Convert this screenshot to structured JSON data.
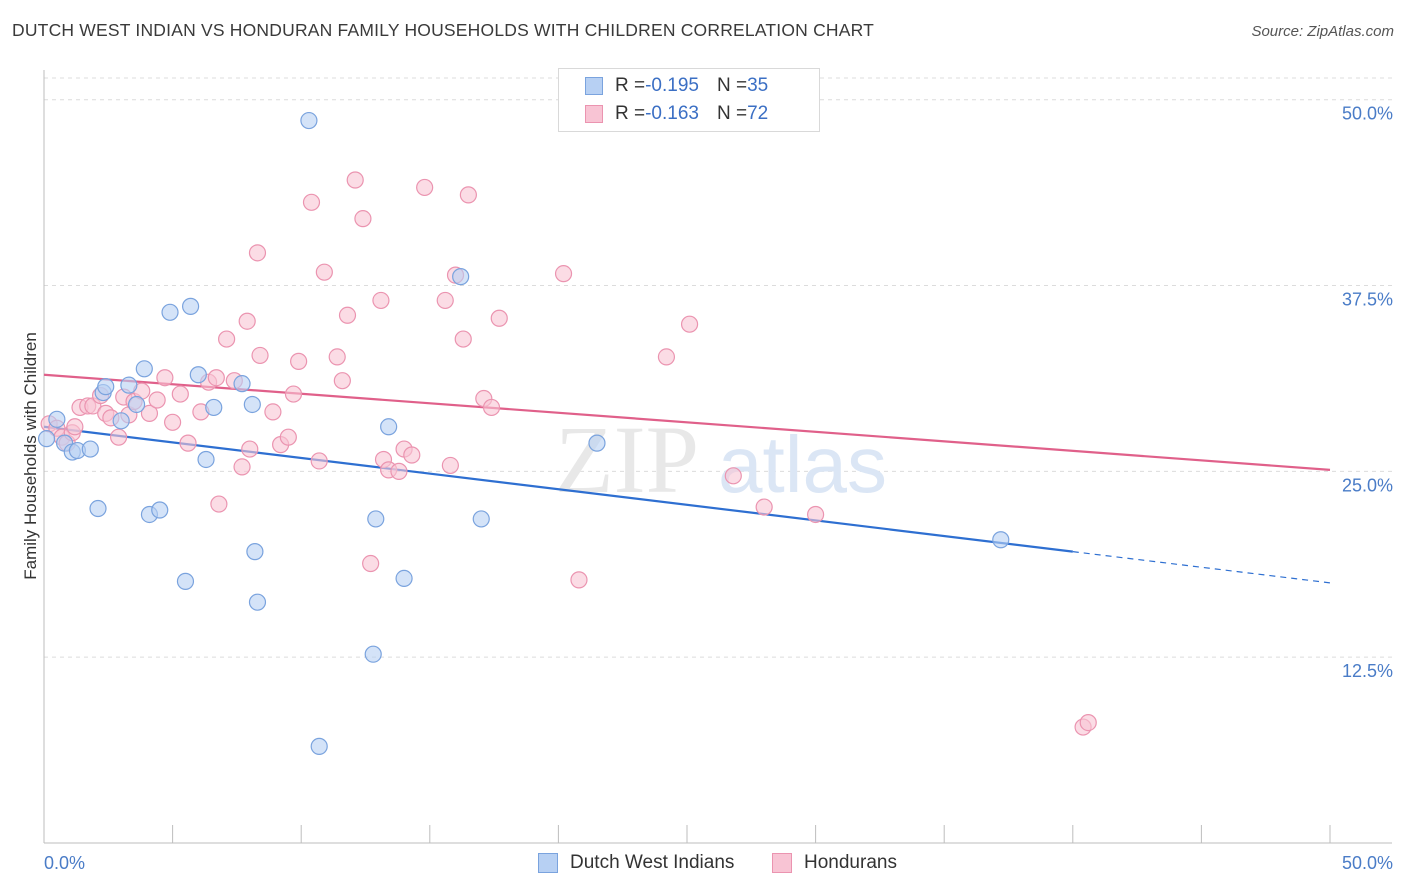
{
  "header": {
    "title": "DUTCH WEST INDIAN VS HONDURAN FAMILY HOUSEHOLDS WITH CHILDREN CORRELATION CHART",
    "source": "Source: ZipAtlas.com"
  },
  "watermark": {
    "zip": "ZIP",
    "atlas": "atlas"
  },
  "legend": {
    "rows": [
      {
        "r_label": "R = ",
        "r_value": "-0.195",
        "n_label": "N = ",
        "n_value": "35"
      },
      {
        "r_label": "R = ",
        "r_value": "-0.163",
        "n_label": "N = ",
        "n_value": "72"
      }
    ]
  },
  "bottom_legend": {
    "items": [
      "Dutch West Indians",
      "Hondurans"
    ]
  },
  "colors": {
    "blue_fill": "#b7d0f3",
    "blue_stroke": "#7aa3de",
    "blue_line": "#2e6fd1",
    "pink_fill": "#f8c4d4",
    "pink_stroke": "#eb94b0",
    "pink_line": "#e0608a",
    "tick_text": "#4a7cc7",
    "grid": "#dcdcdc"
  },
  "chart_data": {
    "type": "scatter",
    "title": "DUTCH WEST INDIAN VS HONDURAN FAMILY HOUSEHOLDS WITH CHILDREN CORRELATION CHART",
    "xlabel": "",
    "ylabel": "Family Households with Children",
    "xlim": [
      0,
      50
    ],
    "ylim": [
      0,
      52
    ],
    "x_tick_labels": [
      "0.0%",
      "50.0%"
    ],
    "y_ticks": [
      12.5,
      25.0,
      37.5,
      50.0
    ],
    "y_tick_labels": [
      "12.5%",
      "25.0%",
      "37.5%",
      "50.0%"
    ],
    "grid": true,
    "legend_position": "top-center",
    "series": [
      {
        "name": "Dutch West Indians",
        "R": -0.195,
        "N": 35,
        "trend": {
          "x0": 0,
          "y0": 28.0,
          "x1": 40,
          "y1": 19.6,
          "dashed_to_x": 50,
          "dashed_to_y": 17.5
        },
        "points": [
          [
            10.3,
            48.6
          ],
          [
            0.1,
            27.2
          ],
          [
            0.5,
            28.5
          ],
          [
            0.8,
            26.9
          ],
          [
            1.1,
            26.3
          ],
          [
            1.3,
            26.4
          ],
          [
            1.8,
            26.5
          ],
          [
            2.1,
            22.5
          ],
          [
            2.3,
            30.3
          ],
          [
            2.4,
            30.7
          ],
          [
            3.0,
            28.4
          ],
          [
            3.3,
            30.8
          ],
          [
            3.6,
            29.5
          ],
          [
            3.9,
            31.9
          ],
          [
            4.1,
            22.1
          ],
          [
            4.5,
            22.4
          ],
          [
            4.9,
            35.7
          ],
          [
            5.5,
            17.6
          ],
          [
            5.7,
            36.1
          ],
          [
            6.0,
            31.5
          ],
          [
            6.3,
            25.8
          ],
          [
            6.6,
            29.3
          ],
          [
            7.7,
            30.9
          ],
          [
            8.1,
            29.5
          ],
          [
            8.2,
            19.6
          ],
          [
            8.3,
            16.2
          ],
          [
            10.7,
            6.5
          ],
          [
            12.8,
            12.7
          ],
          [
            12.9,
            21.8
          ],
          [
            13.4,
            28.0
          ],
          [
            14.0,
            17.8
          ],
          [
            16.2,
            38.1
          ],
          [
            17.0,
            21.8
          ],
          [
            21.5,
            26.9
          ],
          [
            37.2,
            20.4
          ]
        ]
      },
      {
        "name": "Hondurans",
        "R": -0.163,
        "N": 72,
        "trend": {
          "x0": 0,
          "y0": 31.5,
          "x1": 50,
          "y1": 25.1
        },
        "points": [
          [
            0.2,
            28.2
          ],
          [
            0.5,
            27.9
          ],
          [
            0.7,
            27.3
          ],
          [
            0.9,
            26.9
          ],
          [
            1.1,
            27.6
          ],
          [
            1.2,
            28.0
          ],
          [
            1.4,
            29.3
          ],
          [
            1.7,
            29.4
          ],
          [
            1.9,
            29.4
          ],
          [
            2.2,
            30.1
          ],
          [
            2.4,
            28.9
          ],
          [
            2.6,
            28.6
          ],
          [
            2.9,
            27.3
          ],
          [
            3.1,
            30.0
          ],
          [
            3.3,
            28.8
          ],
          [
            3.5,
            29.7
          ],
          [
            3.8,
            30.4
          ],
          [
            4.1,
            28.9
          ],
          [
            4.4,
            29.8
          ],
          [
            4.7,
            31.3
          ],
          [
            5.0,
            28.3
          ],
          [
            5.3,
            30.2
          ],
          [
            5.6,
            26.9
          ],
          [
            6.1,
            29.0
          ],
          [
            6.4,
            31.0
          ],
          [
            6.7,
            31.3
          ],
          [
            6.8,
            22.8
          ],
          [
            7.1,
            33.9
          ],
          [
            7.4,
            31.1
          ],
          [
            7.7,
            25.3
          ],
          [
            7.9,
            35.1
          ],
          [
            8.0,
            26.5
          ],
          [
            8.3,
            39.7
          ],
          [
            8.4,
            32.8
          ],
          [
            8.9,
            29.0
          ],
          [
            9.2,
            26.8
          ],
          [
            9.5,
            27.3
          ],
          [
            9.7,
            30.2
          ],
          [
            9.9,
            32.4
          ],
          [
            10.4,
            43.1
          ],
          [
            10.7,
            25.7
          ],
          [
            10.9,
            38.4
          ],
          [
            11.4,
            32.7
          ],
          [
            11.6,
            31.1
          ],
          [
            11.8,
            35.5
          ],
          [
            12.1,
            44.6
          ],
          [
            12.4,
            42.0
          ],
          [
            12.7,
            18.8
          ],
          [
            13.1,
            36.5
          ],
          [
            13.2,
            25.8
          ],
          [
            13.4,
            25.1
          ],
          [
            13.8,
            25.0
          ],
          [
            14.0,
            26.5
          ],
          [
            14.3,
            26.1
          ],
          [
            14.8,
            44.1
          ],
          [
            15.6,
            36.5
          ],
          [
            15.8,
            25.4
          ],
          [
            16.0,
            38.2
          ],
          [
            16.3,
            33.9
          ],
          [
            16.5,
            43.6
          ],
          [
            17.1,
            29.9
          ],
          [
            17.4,
            29.3
          ],
          [
            17.7,
            35.3
          ],
          [
            20.2,
            38.3
          ],
          [
            20.8,
            17.7
          ],
          [
            24.2,
            32.7
          ],
          [
            25.1,
            34.9
          ],
          [
            26.8,
            24.7
          ],
          [
            28.0,
            22.6
          ],
          [
            30.0,
            22.1
          ],
          [
            40.4,
            7.8
          ],
          [
            40.6,
            8.1
          ]
        ]
      }
    ]
  }
}
